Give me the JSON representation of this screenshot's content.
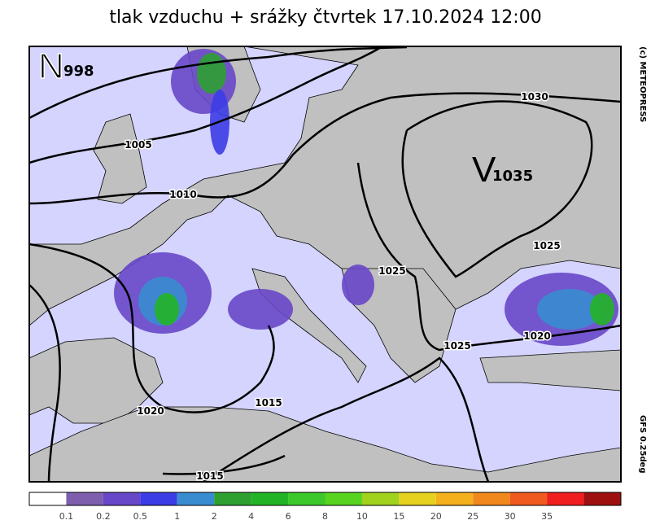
{
  "title": "tlak vzduchu + srážky čtvrtek 17.10.2024 12:00",
  "pressure_centers": [
    {
      "letter": "N",
      "value": "998"
    },
    {
      "letter": "V",
      "value": "1035"
    }
  ],
  "isobar_labels": [
    "1005",
    "1010",
    "1020",
    "1015",
    "1015",
    "1025",
    "1025",
    "1025",
    "1030",
    "1020"
  ],
  "copyright": "(c) METEOPRESS",
  "model": "GFS 0.25deg",
  "colorbar": {
    "colors": [
      "#ffffff",
      "#7e5fae",
      "#6847c8",
      "#3c3ce6",
      "#3a8cd0",
      "#2ea032",
      "#22b426",
      "#3cc82a",
      "#58d420",
      "#a0d21e",
      "#e6d21e",
      "#f5b01e",
      "#f0881e",
      "#f05a1e",
      "#f01e1e",
      "#9e1010"
    ],
    "labels": [
      "0.1",
      "0.2",
      "0.5",
      "1",
      "2",
      "4",
      "6",
      "8",
      "10",
      "15",
      "20",
      "25",
      "30",
      "35"
    ]
  }
}
